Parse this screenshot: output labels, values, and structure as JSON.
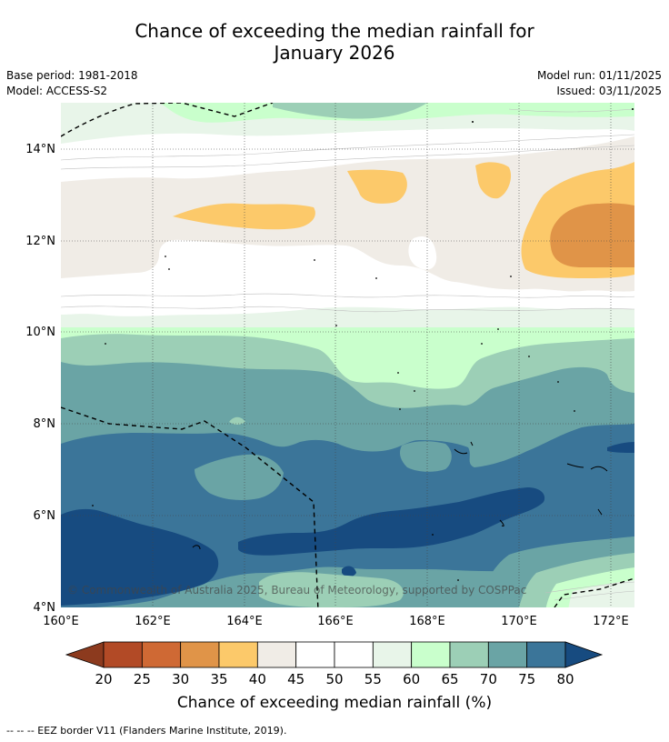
{
  "title_line1": "Chance of exceeding the median rainfall for",
  "title_line2": "January 2026",
  "info": {
    "base_period": "Base period: 1981-2018",
    "model": "Model: ACCESS-S2",
    "model_run": "Model run: 01/11/2025",
    "issued": "Issued: 03/11/2025"
  },
  "map": {
    "lat_labels": [
      "14°N",
      "12°N",
      "10°N",
      "8°N",
      "6°N",
      "4°N"
    ],
    "lon_labels": [
      "160°E",
      "162°E",
      "164°E",
      "166°E",
      "168°E",
      "170°E",
      "172°E"
    ],
    "copyright": "© Commonwealth of Australia 2025, Bureau of Meteorology, supported by COSPPac"
  },
  "colorbar": {
    "ticks": [
      "20",
      "25",
      "30",
      "35",
      "40",
      "45",
      "50",
      "55",
      "60",
      "65",
      "70",
      "75",
      "80"
    ],
    "colors": [
      "#b24a26",
      "#cf6934",
      "#e09448",
      "#fcc96a",
      "#f0ece6",
      "#ffffff",
      "#ffffff",
      "#e8f5e9",
      "#c9ffcc",
      "#9ccfb6",
      "#6aa4a5",
      "#3b7599"
    ],
    "under_color": "#8c3a1e",
    "over_color": "#174b80",
    "label": "Chance of exceeding median rainfall (%)"
  },
  "footer": "--  --  -- EEZ border V11 (Flanders Marine Institute, 2019)."
}
